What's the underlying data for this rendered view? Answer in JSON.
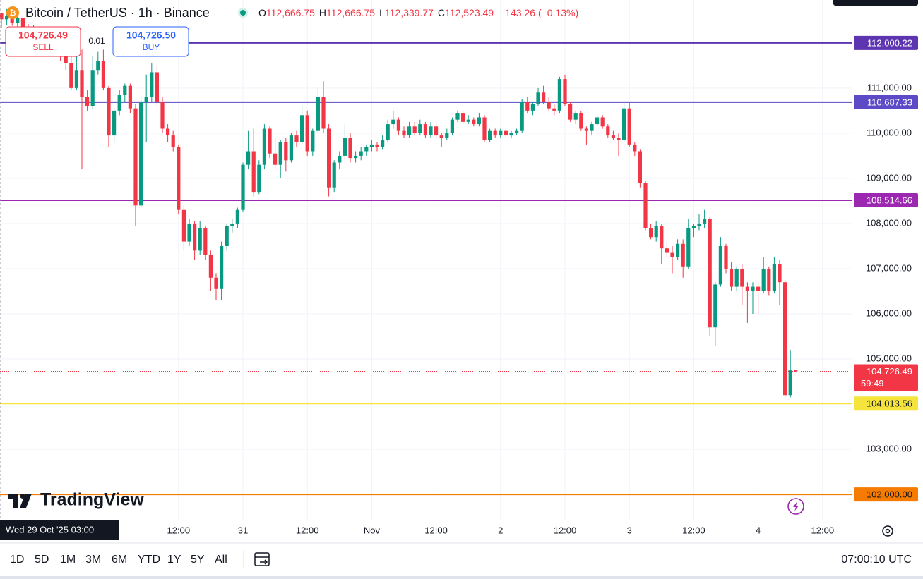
{
  "header": {
    "symbol": "Bitcoin / TetherUS · 1h · Binance",
    "open_label": "O",
    "open": "112,666.75",
    "high_label": "H",
    "high": "112,666.75",
    "low_label": "L",
    "low": "112,339.77",
    "close_label": "C",
    "close": "112,523.49",
    "change": "−143.26 (−0.13%)"
  },
  "trade": {
    "sell_price": "104,726.49",
    "sell_label": "SELL",
    "quantity": "0.01",
    "buy_price": "104,726.50",
    "buy_label": "BUY"
  },
  "logo": {
    "text": "TradingView"
  },
  "chart_data": {
    "type": "candlestick",
    "up_color": "#089981",
    "down_color": "#f23645",
    "grid": true,
    "crosshair_time": "Wed 29 Oct '25  03:00",
    "categories": [
      null,
      null,
      null,
      null,
      null,
      null,
      null,
      null,
      null,
      null,
      null,
      null,
      null,
      null,
      null,
      null,
      null,
      null,
      null,
      null,
      null,
      null,
      null,
      null,
      null,
      null,
      null,
      null,
      null,
      null,
      null,
      null,
      null,
      "12:00",
      null,
      null,
      null,
      null,
      null,
      null,
      null,
      null,
      null,
      null,
      null,
      "31",
      null,
      null,
      null,
      null,
      null,
      null,
      null,
      null,
      null,
      null,
      null,
      "12:00",
      null,
      null,
      null,
      null,
      null,
      null,
      null,
      null,
      null,
      null,
      null,
      "Nov",
      null,
      null,
      null,
      null,
      null,
      null,
      null,
      null,
      null,
      null,
      null,
      "12:00",
      null,
      null,
      null,
      null,
      null,
      null,
      null,
      null,
      null,
      null,
      null,
      "2",
      null,
      null,
      null,
      null,
      null,
      null,
      null,
      null,
      null,
      null,
      null,
      "12:00",
      null,
      null,
      null,
      null,
      null,
      null,
      null,
      null,
      null,
      null,
      null,
      "3",
      null,
      null,
      null,
      null,
      null,
      null,
      null,
      null,
      null,
      null,
      null,
      "12:00",
      null,
      null,
      null,
      null,
      null,
      null,
      null,
      null,
      null,
      null,
      null,
      "4",
      null,
      null,
      null,
      null,
      null,
      null,
      null,
      null,
      null,
      null,
      null,
      "12:00"
    ],
    "open": [
      112666.75,
      112523,
      112600,
      112450,
      112550,
      112300,
      112200,
      112300,
      112100,
      112200,
      112000,
      111950,
      111700,
      111550,
      111000,
      111400,
      110800,
      110600,
      111400,
      111600,
      111000,
      109950,
      110500,
      110850,
      111050,
      110550,
      108400,
      110700,
      110800,
      111350,
      110700,
      110100,
      109950,
      109700,
      108300,
      107600,
      108000,
      107400,
      107900,
      107300,
      106800,
      106550,
      107500,
      107950,
      108000,
      108300,
      109300,
      109600,
      108700,
      109300,
      110100,
      109550,
      109300,
      109800,
      109400,
      109950,
      109800,
      110400,
      109600,
      110050,
      110800,
      110100,
      108800,
      109350,
      109500,
      109900,
      109450,
      109500,
      109600,
      109700,
      109750,
      109700,
      109850,
      110200,
      110300,
      110050,
      109950,
      110150,
      110000,
      110200,
      109950,
      110150,
      109950,
      109900,
      110000,
      110300,
      110450,
      110250,
      110300,
      110200,
      110350,
      109850,
      110050,
      109950,
      110050,
      109950,
      110000,
      110050,
      110700,
      110500,
      110650,
      110900,
      110700,
      110550,
      110500,
      111200,
      110650,
      110300,
      110450,
      110100,
      110050,
      110200,
      110350,
      110150,
      109950,
      109900,
      109850,
      110550,
      109750,
      109600,
      108900,
      107900,
      107700,
      107950,
      107450,
      107350,
      107250,
      107550,
      107050,
      107900,
      107950,
      108000,
      108100,
      105700,
      106650,
      107500,
      107000,
      106600,
      107000,
      106600,
      106500,
      106600,
      106500,
      107000,
      106500,
      107100,
      106700,
      104200,
      104750,
      null,
      null,
      null,
      null,
      null
    ],
    "high": [
      112666.75,
      112750,
      112700,
      112620,
      112600,
      112420,
      112400,
      112350,
      112300,
      112250,
      112100,
      112000,
      111800,
      111900,
      111800,
      111850,
      110950,
      111700,
      111800,
      111850,
      111050,
      110550,
      110950,
      111100,
      111100,
      110650,
      110800,
      111300,
      111550,
      111500,
      110800,
      110200,
      110050,
      109750,
      108400,
      108100,
      108050,
      108050,
      107950,
      107400,
      106900,
      107600,
      108000,
      108100,
      108350,
      109350,
      110050,
      110100,
      109400,
      110200,
      110150,
      109900,
      109850,
      109900,
      110000,
      110050,
      110600,
      110500,
      110100,
      111000,
      111150,
      110200,
      109400,
      109600,
      110200,
      110000,
      109600,
      109700,
      109750,
      109850,
      109800,
      109950,
      110300,
      110500,
      110350,
      110150,
      110250,
      110250,
      110300,
      110250,
      110250,
      110200,
      110000,
      110100,
      110350,
      110500,
      110500,
      110400,
      110350,
      110450,
      110400,
      110100,
      110100,
      110100,
      110100,
      110050,
      110100,
      110750,
      110800,
      110700,
      111000,
      111050,
      110800,
      110650,
      111250,
      111300,
      110700,
      110500,
      110500,
      110150,
      110250,
      110400,
      110400,
      110200,
      110050,
      110000,
      110700,
      110700,
      109800,
      109650,
      108950,
      108000,
      108050,
      108000,
      107600,
      107500,
      107650,
      107650,
      108100,
      108000,
      108200,
      108300,
      108150,
      106700,
      107700,
      107550,
      107150,
      107050,
      107100,
      106700,
      106700,
      106700,
      107250,
      107050,
      107250,
      107200,
      106750,
      105200,
      104760,
      null,
      null,
      null,
      null,
      null
    ],
    "low": [
      112339.77,
      112400,
      112380,
      112350,
      112200,
      112150,
      112100,
      112000,
      112000,
      111900,
      111850,
      111600,
      111400,
      110950,
      110950,
      109200,
      110500,
      110550,
      111300,
      110950,
      109700,
      109800,
      110400,
      110700,
      110450,
      107950,
      108350,
      109800,
      110700,
      110600,
      110000,
      109800,
      109600,
      108200,
      107400,
      107500,
      107200,
      107300,
      107200,
      106500,
      106300,
      106300,
      107400,
      107800,
      107900,
      108250,
      109200,
      108600,
      108650,
      109200,
      109450,
      109200,
      109000,
      109150,
      109350,
      109700,
      109750,
      109500,
      109500,
      110000,
      110000,
      108600,
      108700,
      109200,
      109400,
      109350,
      109350,
      109400,
      109500,
      109600,
      109600,
      109650,
      109800,
      110100,
      109950,
      109900,
      109900,
      109950,
      109950,
      109900,
      109900,
      109900,
      109700,
      109850,
      109950,
      110250,
      110200,
      110200,
      110150,
      110150,
      109800,
      109800,
      109900,
      109900,
      109900,
      109900,
      109950,
      110000,
      110450,
      110400,
      110600,
      110650,
      110500,
      110400,
      110450,
      110600,
      110250,
      110200,
      110050,
      109750,
      109950,
      110150,
      110100,
      109900,
      109850,
      109500,
      109800,
      109700,
      109500,
      108800,
      107850,
      107650,
      107600,
      107100,
      107250,
      106900,
      107200,
      106800,
      107000,
      107700,
      107850,
      107900,
      105500,
      105300,
      106600,
      106900,
      106500,
      106500,
      106200,
      105800,
      106000,
      106000,
      106450,
      106400,
      106450,
      106200,
      104150,
      104150,
      104700,
      null,
      null,
      null,
      null,
      null
    ],
    "close": [
      112523.49,
      112600,
      112450,
      112550,
      112300,
      112200,
      112300,
      112100,
      112200,
      112000,
      111950,
      111700,
      111550,
      111000,
      111400,
      110800,
      110600,
      111400,
      111600,
      111000,
      109950,
      110500,
      110850,
      111050,
      110550,
      108400,
      110700,
      110800,
      111350,
      110700,
      110100,
      109950,
      109700,
      108300,
      107600,
      108000,
      107400,
      107900,
      107300,
      106800,
      106550,
      107500,
      107950,
      108000,
      108300,
      109300,
      109600,
      108700,
      109300,
      110100,
      109550,
      109300,
      109800,
      109400,
      109950,
      109800,
      110400,
      109600,
      110050,
      110800,
      110100,
      108800,
      109350,
      109500,
      109900,
      109450,
      109500,
      109600,
      109700,
      109750,
      109700,
      109850,
      110200,
      110300,
      110050,
      109950,
      110150,
      110000,
      110200,
      109950,
      110150,
      109950,
      109900,
      110000,
      110300,
      110450,
      110250,
      110300,
      110200,
      110350,
      109850,
      110050,
      109950,
      110050,
      109950,
      110000,
      110050,
      110700,
      110500,
      110650,
      110900,
      110700,
      110550,
      110500,
      111200,
      110650,
      110300,
      110450,
      110100,
      110050,
      110200,
      110350,
      110150,
      109950,
      109900,
      109850,
      110550,
      109750,
      109600,
      108900,
      107900,
      107700,
      107950,
      107450,
      107350,
      107250,
      107550,
      107050,
      107900,
      107950,
      108000,
      108100,
      105700,
      106650,
      107500,
      107000,
      106600,
      107000,
      106600,
      106500,
      106600,
      106500,
      107000,
      106500,
      107100,
      106700,
      104200,
      104750,
      104726.49,
      null,
      null,
      null,
      null,
      null
    ],
    "ylim": [
      101440,
      112950
    ],
    "yticks": [
      {
        "value": 111000,
        "label": "111,000.00"
      },
      {
        "value": 110000,
        "label": "110,000.00"
      },
      {
        "value": 109000,
        "label": "109,000.00"
      },
      {
        "value": 108000,
        "label": "108,000.00"
      },
      {
        "value": 107000,
        "label": "107,000.00"
      },
      {
        "value": 106000,
        "label": "106,000.00"
      },
      {
        "value": 105000,
        "label": "105,000.00"
      },
      {
        "value": 103000,
        "label": "103,000.00"
      }
    ],
    "price_lines": [
      {
        "value": 112000.22,
        "label": "112,000.22",
        "color": "#5e35b1",
        "text_color": "#ffffff"
      },
      {
        "value": 110687.33,
        "label": "110,687.33",
        "color": "#5c4ac7",
        "text_color": "#ffffff"
      },
      {
        "value": 108514.66,
        "label": "108,514.66",
        "color": "#9c27b0",
        "text_color": "#ffffff"
      },
      {
        "value": 104013.56,
        "label": "104,013.56",
        "color": "#f5e43b",
        "text_color": "#131722"
      },
      {
        "value": 102000,
        "label": "102,000.00",
        "color": "#f57c00",
        "text_color": "#131722"
      }
    ],
    "last_price": {
      "value": 104726.49,
      "label": "104,726.49",
      "countdown": "59:49",
      "color": "#f23645"
    }
  },
  "toolbar": {
    "ranges": [
      "1D",
      "5D",
      "1M",
      "3M",
      "6M",
      "YTD",
      "1Y",
      "5Y",
      "All"
    ],
    "clock": "07:00:10 UTC"
  }
}
